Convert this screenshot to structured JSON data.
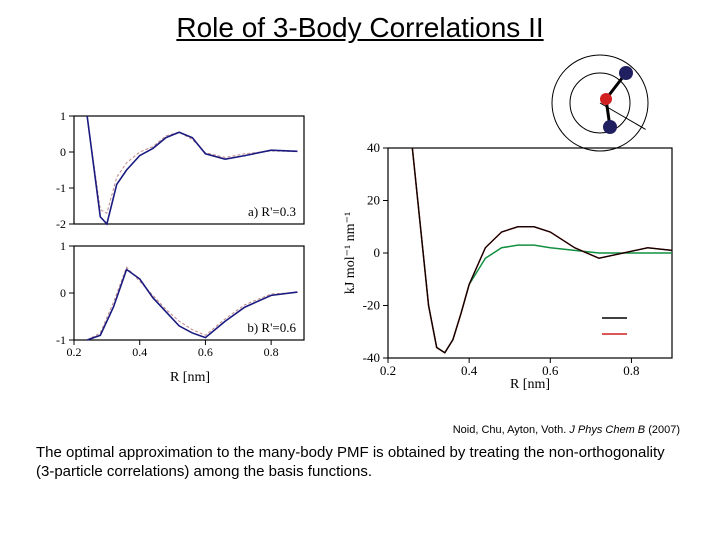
{
  "title": "Role of 3-Body Correlations II",
  "citation": {
    "authors": "Noid, Chu, Ayton, Voth.",
    "journal": "J Phys Chem B",
    "year": "(2007)"
  },
  "caption": "The optimal approximation to the many-body PMF is obtained by treating the non-orthogonality (3-particle correlations) among the basis functions.",
  "left_panel_a": {
    "label": "a) R'=0.3",
    "xlim": [
      0.2,
      0.9
    ],
    "ylim": [
      -2,
      1
    ],
    "yticks": [
      -2,
      -1,
      0,
      1
    ],
    "xticks": [
      0.2,
      0.4,
      0.6,
      0.8
    ],
    "colors": {
      "main": "#1a1a80",
      "alt": "#c08888",
      "axis": "#000000"
    },
    "data": {
      "x": [
        0.24,
        0.28,
        0.3,
        0.33,
        0.36,
        0.4,
        0.44,
        0.48,
        0.52,
        0.56,
        0.6,
        0.66,
        0.72,
        0.8,
        0.88
      ],
      "y1": [
        1.0,
        -1.8,
        -2.0,
        -0.9,
        -0.5,
        -0.1,
        0.1,
        0.4,
        0.55,
        0.4,
        -0.05,
        -0.2,
        -0.1,
        0.05,
        0.02
      ],
      "y2": [
        1.0,
        -1.6,
        -1.7,
        -0.7,
        -0.3,
        0.0,
        0.15,
        0.45,
        0.55,
        0.35,
        -0.02,
        -0.15,
        -0.05,
        0.03,
        0.01
      ]
    }
  },
  "left_panel_b": {
    "label": "b) R'=0.6",
    "xlim": [
      0.2,
      0.9
    ],
    "ylim": [
      -1,
      1
    ],
    "yticks": [
      -1,
      0,
      1
    ],
    "xticks": [
      0.2,
      0.4,
      0.6,
      0.8
    ],
    "xlabel": "R [nm]",
    "colors": {
      "main": "#1a1a80",
      "alt": "#c08888",
      "axis": "#000000"
    },
    "data": {
      "x": [
        0.24,
        0.28,
        0.32,
        0.36,
        0.4,
        0.44,
        0.48,
        0.52,
        0.56,
        0.6,
        0.66,
        0.72,
        0.8,
        0.88
      ],
      "y1": [
        -1.0,
        -0.9,
        -0.3,
        0.5,
        0.3,
        -0.1,
        -0.4,
        -0.7,
        -0.85,
        -0.95,
        -0.6,
        -0.3,
        -0.05,
        0.02
      ],
      "y2": [
        -1.0,
        -0.85,
        -0.2,
        0.55,
        0.25,
        -0.05,
        -0.35,
        -0.6,
        -0.78,
        -0.9,
        -0.55,
        -0.25,
        -0.02,
        0.01
      ]
    }
  },
  "right_panel": {
    "xlim": [
      0.2,
      0.9
    ],
    "ylim": [
      -40,
      40
    ],
    "yticks": [
      -40,
      -20,
      0,
      20,
      40
    ],
    "xticks": [
      0.2,
      0.4,
      0.6,
      0.8
    ],
    "xlabel": "R [nm]",
    "ylabel": "kJ mol⁻¹ nm⁻¹",
    "colors": {
      "red": "#d02020",
      "green": "#109040",
      "black": "#000000",
      "axis": "#000000",
      "tick": "#000000"
    },
    "data": {
      "x": [
        0.26,
        0.28,
        0.3,
        0.32,
        0.34,
        0.36,
        0.38,
        0.4,
        0.44,
        0.48,
        0.52,
        0.56,
        0.6,
        0.66,
        0.72,
        0.78,
        0.84,
        0.9
      ],
      "red": [
        40,
        10,
        -20,
        -36,
        -38,
        -33,
        -23,
        -12,
        2,
        8,
        10,
        10,
        8,
        2,
        -2,
        0,
        2,
        1
      ],
      "grn": [
        40,
        10,
        -20,
        -36,
        -38,
        -33,
        -23,
        -12,
        -2,
        2,
        3,
        3,
        2,
        1,
        0,
        0,
        0,
        0
      ],
      "blk": [
        40,
        10,
        -20,
        -36,
        -38,
        -33,
        -23,
        -12,
        2,
        8,
        10,
        10,
        8,
        2,
        -2,
        0,
        2,
        1
      ]
    },
    "legend_colors": [
      "#000000",
      "#d02020"
    ]
  },
  "diagram": {
    "outer_r": 48,
    "inner_r": 30,
    "center_dot_r": 6,
    "outer_dot_r": 7,
    "center_dot_color": "#d02020",
    "outer_dot_color": "#202060",
    "line_color": "#000000",
    "circle_stroke": "#000000"
  }
}
